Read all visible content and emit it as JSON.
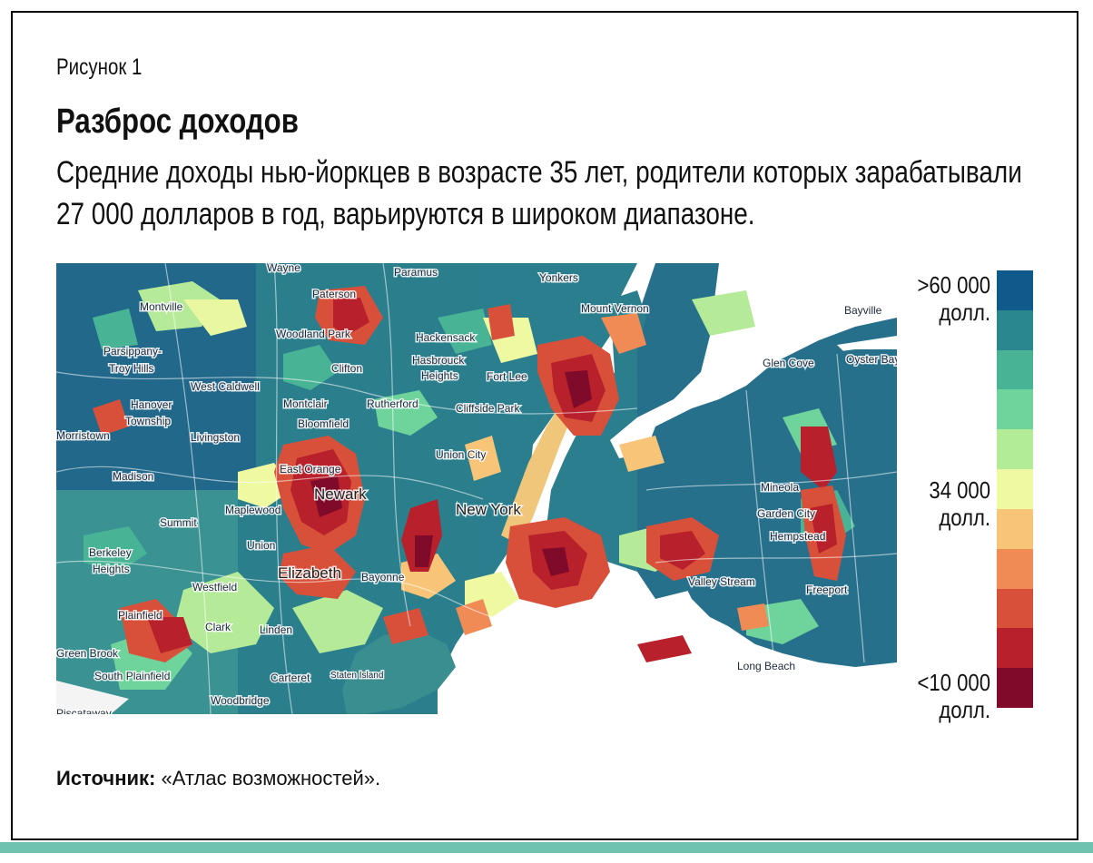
{
  "figure": {
    "label": "Рисунок 1",
    "title": "Разброс доходов",
    "subtitle": "Средние доходы нью-йоркцев в возрасте 35 лет, родители которых зарабатывали 27 000 долларов в год, варьируются в широком диапазоне."
  },
  "legend": {
    "top_label_line1": ">60 000",
    "top_label_line2": "долл.",
    "mid_label_line1": "34 000",
    "mid_label_line2": "долл.",
    "bottom_label_line1": "<10 000",
    "bottom_label_line2": "долл.",
    "colors": [
      "#0f5a8a",
      "#2a8790",
      "#48b395",
      "#6fd39c",
      "#b2ec96",
      "#eef9a2",
      "#f8c578",
      "#f08b56",
      "#d9503a",
      "#b8202c",
      "#7f0a2a"
    ]
  },
  "map": {
    "places": [
      {
        "name": "Wayne"
      },
      {
        "name": "Paramus"
      },
      {
        "name": "Yonkers"
      },
      {
        "name": "Paterson"
      },
      {
        "name": "Montville"
      },
      {
        "name": "Mount Vernon"
      },
      {
        "name": "Bayville"
      },
      {
        "name": "Woodland Park"
      },
      {
        "name": "Hackensack"
      },
      {
        "name": "Parsippany-"
      },
      {
        "name": "Troy Hills"
      },
      {
        "name": "Clifton"
      },
      {
        "name": "Hasbrouck"
      },
      {
        "name": "Heights"
      },
      {
        "name": "Fort Lee"
      },
      {
        "name": "Glen Cove"
      },
      {
        "name": "Oyster Bay"
      },
      {
        "name": "West Caldwell"
      },
      {
        "name": "Montclair"
      },
      {
        "name": "Rutherford"
      },
      {
        "name": "Cliffside Park"
      },
      {
        "name": "Hanover"
      },
      {
        "name": "Township"
      },
      {
        "name": "Bloomfield"
      },
      {
        "name": "Morristown"
      },
      {
        "name": "Livingston"
      },
      {
        "name": "Union City"
      },
      {
        "name": "Madison"
      },
      {
        "name": "East Orange"
      },
      {
        "name": "Newark"
      },
      {
        "name": "Mineola"
      },
      {
        "name": "New York"
      },
      {
        "name": "Maplewood"
      },
      {
        "name": "Garden City"
      },
      {
        "name": "Summit"
      },
      {
        "name": "Hempstead"
      },
      {
        "name": "Union"
      },
      {
        "name": "Berkeley"
      },
      {
        "name": "Heights"
      },
      {
        "name": "Elizabeth"
      },
      {
        "name": "Bayonne"
      },
      {
        "name": "Valley Stream"
      },
      {
        "name": "Westfield"
      },
      {
        "name": "Freeport"
      },
      {
        "name": "Plainfield"
      },
      {
        "name": "Clark"
      },
      {
        "name": "Linden"
      },
      {
        "name": "Green Brook"
      },
      {
        "name": "South Plainfield"
      },
      {
        "name": "Long Beach"
      },
      {
        "name": "Carteret"
      },
      {
        "name": "Staten Island"
      },
      {
        "name": "Woodbridge"
      },
      {
        "name": "Piscataway"
      }
    ]
  },
  "source": {
    "label": "Источник:",
    "text": " «Атлас возможностей»."
  }
}
